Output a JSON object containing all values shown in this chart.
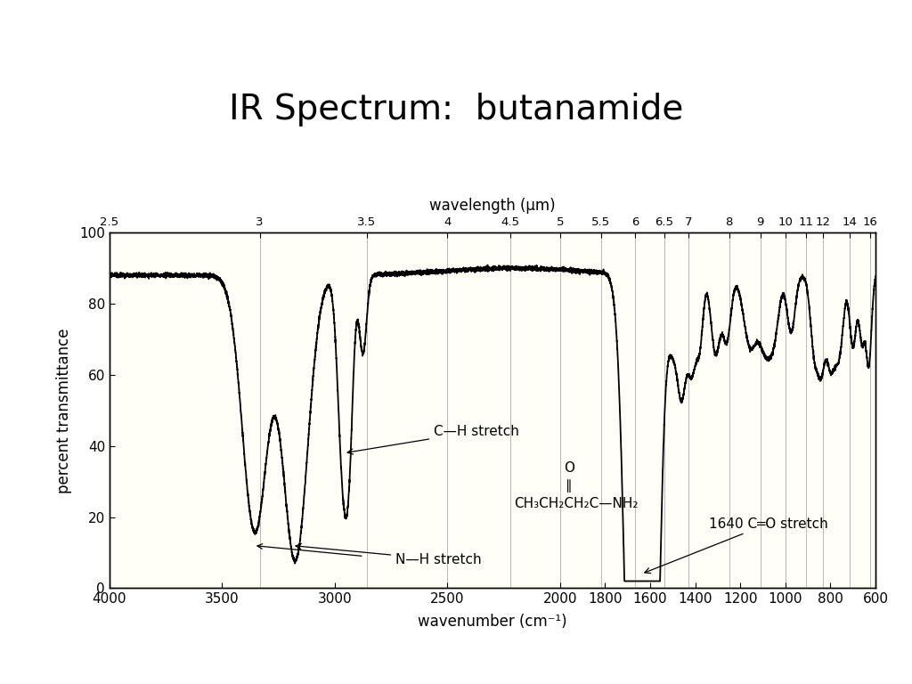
{
  "title": "IR Spectrum:  butanamide",
  "xlabel": "wavenumber (cm⁻¹)",
  "ylabel": "percent transmittance",
  "top_xlabel": "wavelength (μm)",
  "top_ticks_wavelength": [
    2.5,
    3,
    3.5,
    4,
    4.5,
    5,
    5.5,
    6,
    6.5,
    7,
    8,
    9,
    10,
    11,
    12,
    14,
    16
  ],
  "bottom_ticks": [
    4000,
    3500,
    3000,
    2500,
    2000,
    1800,
    1600,
    1400,
    1200,
    1000,
    800,
    600
  ],
  "xlim_left": 4000,
  "xlim_right": 600,
  "ylim": [
    0,
    100
  ],
  "yticks": [
    0,
    20,
    40,
    60,
    80,
    100
  ],
  "background_color": "#ffffff",
  "plot_background": "#fffff8",
  "line_color": "#000000",
  "grid_color": "#999999",
  "title_fontsize": 28,
  "axis_label_fontsize": 12,
  "tick_fontsize": 11
}
